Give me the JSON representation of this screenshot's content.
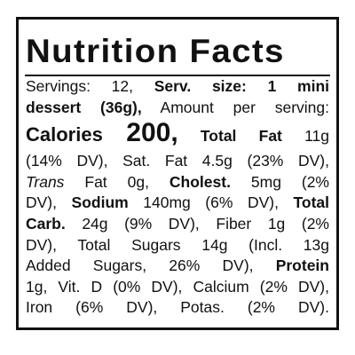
{
  "label": {
    "title": "Nutrition Facts",
    "lines": [
      [
        "Servings: 12, ",
        "Serv. size: 1 mini"
      ],
      [
        "dessert (36g),",
        " Amount per serving:"
      ],
      [
        "Calories ",
        "200,",
        " Total Fat",
        " 11g"
      ],
      [
        "(14% DV), Sat. Fat 4.5g (23% DV),"
      ],
      [
        "Trans",
        " Fat 0g, ",
        "Cholest.",
        " 5mg (2%"
      ],
      [
        "DV), ",
        "Sodium",
        " 140mg (6% DV), ",
        "Total"
      ],
      [
        "Carb.",
        " 24g (9% DV), Fiber 1g (2%"
      ],
      [
        "DV), Total Sugars 14g (Incl. 13g"
      ],
      [
        "Added Sugars, 26% DV), ",
        "Protein"
      ],
      [
        "1g, Vit. D (0% DV), Calcium (2% DV),"
      ],
      [
        "Iron (6% DV), Potas. (2% DV)."
      ]
    ]
  }
}
